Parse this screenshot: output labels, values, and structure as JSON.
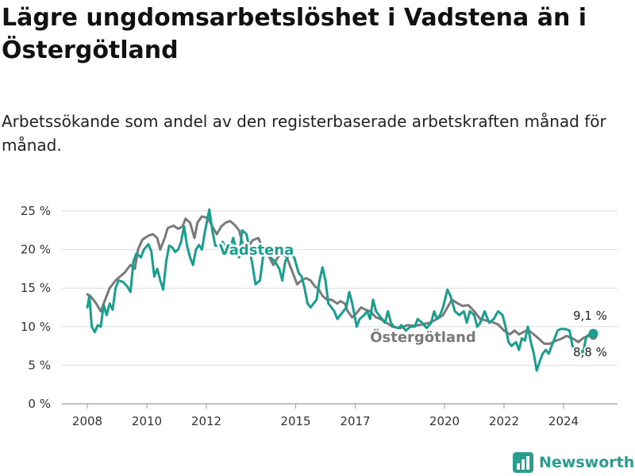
{
  "title": "Lägre ungdomsarbetslöshet i Vadstena än i Östergötland",
  "subtitle": "Arbetssökande som andel av den registerbaserade arbetskraften månad för månad.",
  "brand": {
    "name": "Newsworthy",
    "icon": "chart-logo-icon",
    "color": "#2a9d8f"
  },
  "chart_data": {
    "type": "line",
    "x_unit": "year",
    "xlim": [
      2008,
      2025
    ],
    "ylim": [
      0,
      25
    ],
    "y_ticks": [
      0,
      5,
      10,
      15,
      20,
      25
    ],
    "y_tick_labels": [
      "0 %",
      "5 %",
      "10 %",
      "15 %",
      "20 %",
      "25 %"
    ],
    "x_ticks": [
      2008,
      2010,
      2012,
      2015,
      2017,
      2020,
      2022,
      2024
    ],
    "x_tick_labels": [
      "2008",
      "2010",
      "2012",
      "2015",
      "2017",
      "2020",
      "2022",
      "2024"
    ],
    "grid": true,
    "series": [
      {
        "name": "Östergötland",
        "color": "#7a7a7a",
        "end_label": "8,8 %",
        "points": [
          [
            2008.0,
            14.2
          ],
          [
            2008.1,
            14.0
          ],
          [
            2008.3,
            13.0
          ],
          [
            2008.45,
            12.0
          ],
          [
            2008.6,
            13.5
          ],
          [
            2008.75,
            15.0
          ],
          [
            2008.95,
            16.0
          ],
          [
            2009.1,
            16.5
          ],
          [
            2009.25,
            17.0
          ],
          [
            2009.45,
            18.0
          ],
          [
            2009.6,
            17.5
          ],
          [
            2009.7,
            20.0
          ],
          [
            2009.85,
            21.3
          ],
          [
            2010.05,
            21.8
          ],
          [
            2010.2,
            22.0
          ],
          [
            2010.35,
            21.5
          ],
          [
            2010.45,
            20.0
          ],
          [
            2010.6,
            21.5
          ],
          [
            2010.7,
            22.8
          ],
          [
            2010.9,
            23.1
          ],
          [
            2011.05,
            22.7
          ],
          [
            2011.2,
            23.0
          ],
          [
            2011.3,
            24.0
          ],
          [
            2011.45,
            23.5
          ],
          [
            2011.6,
            21.5
          ],
          [
            2011.7,
            23.5
          ],
          [
            2011.85,
            24.3
          ],
          [
            2012.05,
            24.1
          ],
          [
            2012.2,
            23.0
          ],
          [
            2012.35,
            22.0
          ],
          [
            2012.5,
            23.0
          ],
          [
            2012.65,
            23.5
          ],
          [
            2012.8,
            23.7
          ],
          [
            2012.95,
            23.2
          ],
          [
            2013.1,
            22.5
          ],
          [
            2013.2,
            21.0
          ],
          [
            2013.4,
            20.3
          ],
          [
            2013.55,
            21.2
          ],
          [
            2013.75,
            21.5
          ],
          [
            2013.9,
            20.0
          ],
          [
            2014.05,
            19.5
          ],
          [
            2014.25,
            18.0
          ],
          [
            2014.4,
            19.0
          ],
          [
            2014.55,
            19.6
          ],
          [
            2014.7,
            19.0
          ],
          [
            2014.85,
            17.5
          ],
          [
            2015.05,
            15.5
          ],
          [
            2015.2,
            16.0
          ],
          [
            2015.35,
            16.3
          ],
          [
            2015.5,
            16.0
          ],
          [
            2015.65,
            15.2
          ],
          [
            2015.75,
            15.0
          ],
          [
            2015.9,
            14.0
          ],
          [
            2016.05,
            13.5
          ],
          [
            2016.2,
            13.5
          ],
          [
            2016.4,
            13.0
          ],
          [
            2016.5,
            13.3
          ],
          [
            2016.65,
            13.0
          ],
          [
            2016.75,
            12.0
          ],
          [
            2016.9,
            11.2
          ],
          [
            2017.05,
            11.8
          ],
          [
            2017.2,
            12.5
          ],
          [
            2017.35,
            12.2
          ],
          [
            2017.5,
            12.0
          ],
          [
            2017.7,
            11.2
          ],
          [
            2017.85,
            11.0
          ],
          [
            2018.05,
            10.5
          ],
          [
            2018.25,
            10.0
          ],
          [
            2018.5,
            9.8
          ],
          [
            2018.75,
            10.2
          ],
          [
            2019.0,
            10.1
          ],
          [
            2019.25,
            10.3
          ],
          [
            2019.5,
            10.5
          ],
          [
            2019.75,
            11.0
          ],
          [
            2019.95,
            11.5
          ],
          [
            2020.1,
            12.5
          ],
          [
            2020.25,
            13.5
          ],
          [
            2020.45,
            13.0
          ],
          [
            2020.6,
            12.7
          ],
          [
            2020.8,
            12.8
          ],
          [
            2021.0,
            12.0
          ],
          [
            2021.2,
            11.0
          ],
          [
            2021.4,
            10.8
          ],
          [
            2021.6,
            10.6
          ],
          [
            2021.8,
            10.3
          ],
          [
            2022.0,
            9.5
          ],
          [
            2022.2,
            9.0
          ],
          [
            2022.35,
            9.5
          ],
          [
            2022.5,
            9.0
          ],
          [
            2022.65,
            9.3
          ],
          [
            2022.8,
            9.6
          ],
          [
            2023.0,
            9.0
          ],
          [
            2023.15,
            8.5
          ],
          [
            2023.35,
            7.8
          ],
          [
            2023.55,
            7.8
          ],
          [
            2023.75,
            8.2
          ],
          [
            2023.9,
            8.4
          ],
          [
            2024.1,
            8.8
          ],
          [
            2024.3,
            8.5
          ],
          [
            2024.5,
            8.0
          ],
          [
            2024.65,
            8.5
          ],
          [
            2024.8,
            8.8
          ],
          [
            2025.0,
            8.8
          ]
        ]
      },
      {
        "name": "Vadstena",
        "color": "#1a9e8f",
        "end_label": "9,1 %",
        "points": [
          [
            2008.0,
            12.5
          ],
          [
            2008.07,
            14.0
          ],
          [
            2008.15,
            10.0
          ],
          [
            2008.25,
            9.3
          ],
          [
            2008.35,
            10.2
          ],
          [
            2008.45,
            10.0
          ],
          [
            2008.55,
            12.8
          ],
          [
            2008.65,
            11.5
          ],
          [
            2008.75,
            13.0
          ],
          [
            2008.85,
            12.2
          ],
          [
            2008.95,
            15.0
          ],
          [
            2009.05,
            16.0
          ],
          [
            2009.2,
            15.8
          ],
          [
            2009.35,
            15.2
          ],
          [
            2009.45,
            14.5
          ],
          [
            2009.55,
            18.5
          ],
          [
            2009.65,
            19.5
          ],
          [
            2009.8,
            19.0
          ],
          [
            2009.9,
            20.0
          ],
          [
            2010.05,
            20.7
          ],
          [
            2010.15,
            19.8
          ],
          [
            2010.25,
            16.5
          ],
          [
            2010.35,
            17.5
          ],
          [
            2010.45,
            16.0
          ],
          [
            2010.55,
            14.8
          ],
          [
            2010.65,
            18.5
          ],
          [
            2010.75,
            20.5
          ],
          [
            2010.85,
            20.3
          ],
          [
            2010.95,
            19.7
          ],
          [
            2011.05,
            20.0
          ],
          [
            2011.15,
            21.0
          ],
          [
            2011.25,
            23.0
          ],
          [
            2011.35,
            20.5
          ],
          [
            2011.45,
            19.0
          ],
          [
            2011.55,
            18.0
          ],
          [
            2011.65,
            20.0
          ],
          [
            2011.75,
            20.6
          ],
          [
            2011.85,
            20.0
          ],
          [
            2011.95,
            22.3
          ],
          [
            2012.1,
            25.2
          ],
          [
            2012.2,
            22.5
          ],
          [
            2012.3,
            20.5
          ],
          [
            2012.45,
            20.5
          ],
          [
            2012.55,
            21.0
          ],
          [
            2012.65,
            20.0
          ],
          [
            2012.75,
            19.5
          ],
          [
            2012.9,
            21.5
          ],
          [
            2013.0,
            20.0
          ],
          [
            2013.1,
            19.0
          ],
          [
            2013.2,
            22.5
          ],
          [
            2013.35,
            22.0
          ],
          [
            2013.45,
            20.0
          ],
          [
            2013.55,
            18.0
          ],
          [
            2013.65,
            15.5
          ],
          [
            2013.8,
            16.0
          ],
          [
            2013.9,
            19.0
          ],
          [
            2014.05,
            20.0
          ],
          [
            2014.15,
            19.0
          ],
          [
            2014.3,
            18.5
          ],
          [
            2014.45,
            17.5
          ],
          [
            2014.55,
            16.0
          ],
          [
            2014.65,
            18.5
          ],
          [
            2014.8,
            19.5
          ],
          [
            2014.95,
            19.0
          ],
          [
            2015.1,
            17.0
          ],
          [
            2015.2,
            16.5
          ],
          [
            2015.3,
            15.0
          ],
          [
            2015.4,
            13.0
          ],
          [
            2015.5,
            12.5
          ],
          [
            2015.6,
            13.0
          ],
          [
            2015.7,
            13.5
          ],
          [
            2015.8,
            16.0
          ],
          [
            2015.9,
            17.7
          ],
          [
            2016.0,
            16.0
          ],
          [
            2016.1,
            13.0
          ],
          [
            2016.2,
            12.5
          ],
          [
            2016.3,
            12.0
          ],
          [
            2016.4,
            11.0
          ],
          [
            2016.5,
            11.5
          ],
          [
            2016.6,
            12.0
          ],
          [
            2016.7,
            12.5
          ],
          [
            2016.8,
            14.5
          ],
          [
            2016.9,
            13.0
          ],
          [
            2017.05,
            10.0
          ],
          [
            2017.15,
            11.0
          ],
          [
            2017.3,
            11.5
          ],
          [
            2017.4,
            12.0
          ],
          [
            2017.5,
            11.0
          ],
          [
            2017.6,
            13.5
          ],
          [
            2017.7,
            12.0
          ],
          [
            2017.8,
            11.5
          ],
          [
            2017.9,
            11.0
          ],
          [
            2018.0,
            10.5
          ],
          [
            2018.1,
            12.0
          ],
          [
            2018.2,
            10.5
          ],
          [
            2018.3,
            10.0
          ],
          [
            2018.45,
            9.8
          ],
          [
            2018.55,
            10.2
          ],
          [
            2018.7,
            9.5
          ],
          [
            2018.85,
            10.0
          ],
          [
            2019.0,
            10.0
          ],
          [
            2019.1,
            11.0
          ],
          [
            2019.25,
            10.5
          ],
          [
            2019.4,
            9.8
          ],
          [
            2019.55,
            10.5
          ],
          [
            2019.65,
            12.0
          ],
          [
            2019.75,
            11.0
          ],
          [
            2019.85,
            11.5
          ],
          [
            2019.95,
            12.5
          ],
          [
            2020.1,
            14.8
          ],
          [
            2020.2,
            14.0
          ],
          [
            2020.35,
            12.0
          ],
          [
            2020.5,
            11.5
          ],
          [
            2020.65,
            12.0
          ],
          [
            2020.75,
            10.5
          ],
          [
            2020.85,
            12.0
          ],
          [
            2021.0,
            11.5
          ],
          [
            2021.1,
            10.0
          ],
          [
            2021.2,
            10.5
          ],
          [
            2021.35,
            12.0
          ],
          [
            2021.5,
            10.5
          ],
          [
            2021.65,
            11.0
          ],
          [
            2021.8,
            12.0
          ],
          [
            2021.95,
            11.5
          ],
          [
            2022.05,
            10.0
          ],
          [
            2022.15,
            8.0
          ],
          [
            2022.25,
            7.5
          ],
          [
            2022.4,
            8.0
          ],
          [
            2022.5,
            7.0
          ],
          [
            2022.6,
            8.5
          ],
          [
            2022.7,
            8.2
          ],
          [
            2022.8,
            10.0
          ],
          [
            2022.9,
            8.0
          ],
          [
            2023.0,
            6.5
          ],
          [
            2023.1,
            4.3
          ],
          [
            2023.2,
            5.5
          ],
          [
            2023.3,
            6.5
          ],
          [
            2023.4,
            7.0
          ],
          [
            2023.5,
            6.5
          ],
          [
            2023.6,
            7.5
          ],
          [
            2023.7,
            8.5
          ],
          [
            2023.8,
            9.5
          ],
          [
            2023.9,
            9.7
          ],
          [
            2024.05,
            9.7
          ],
          [
            2024.2,
            9.5
          ],
          [
            2024.3,
            7.5
          ],
          [
            2024.45,
            7.0
          ],
          [
            2024.55,
            7.0
          ],
          [
            2024.65,
            6.5
          ],
          [
            2024.75,
            8.5
          ],
          [
            2024.85,
            9.0
          ],
          [
            2025.0,
            9.1
          ]
        ]
      }
    ]
  }
}
